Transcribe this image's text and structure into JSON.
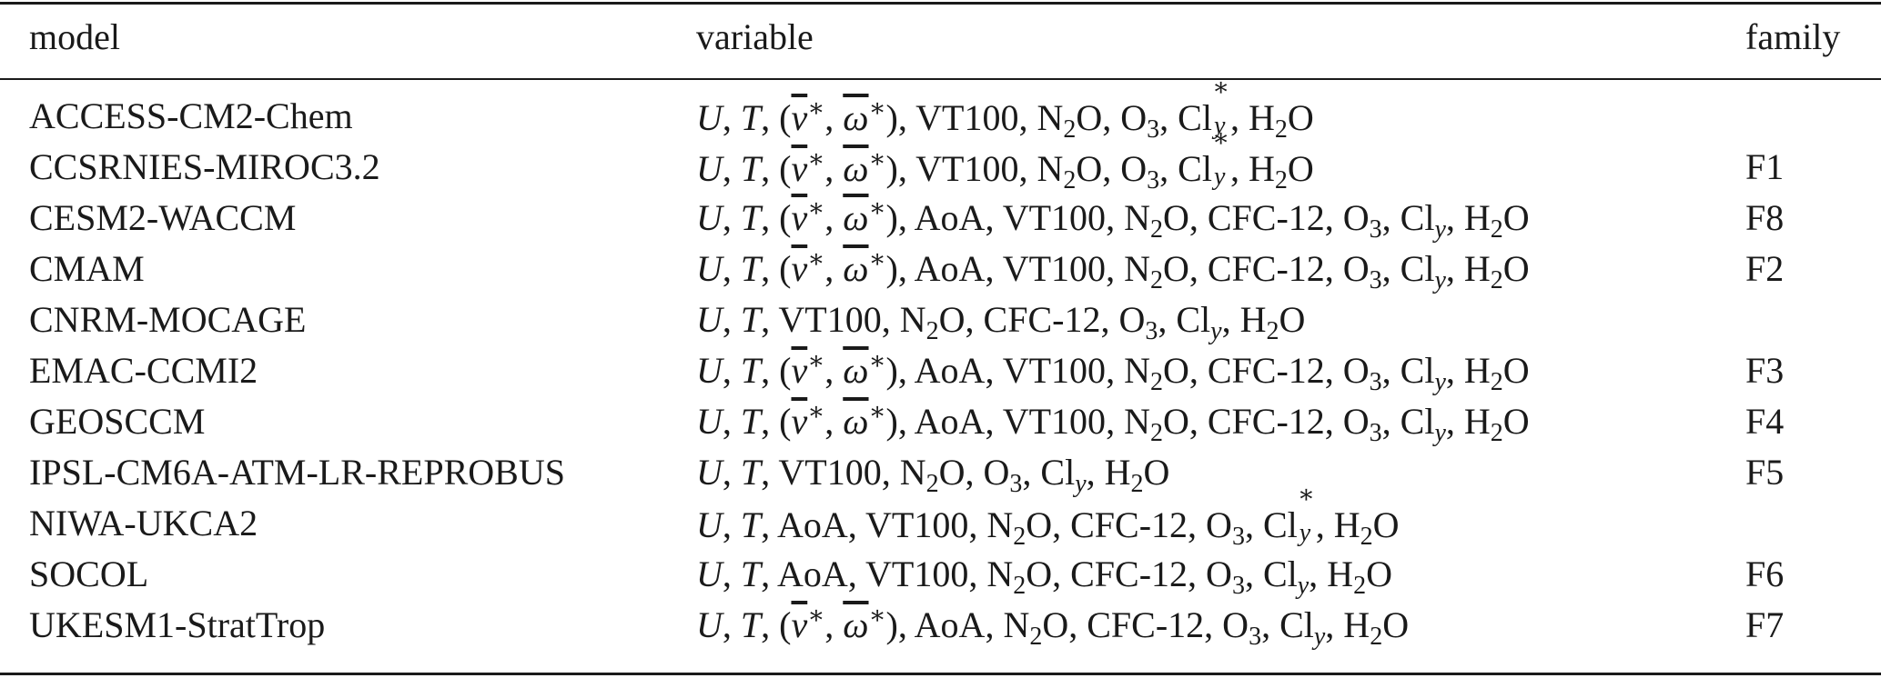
{
  "table": {
    "headers": {
      "model": "model",
      "variable": "variable",
      "family": "family"
    },
    "rows": [
      {
        "model": "ACCESS-CM2-Chem",
        "family": "",
        "vars": [
          "U",
          "T",
          "RC",
          "VT100",
          "N2O",
          "O3",
          "ClyStar",
          "H2O"
        ]
      },
      {
        "model": "CCSRNIES-MIROC3.2",
        "family": "F1",
        "vars": [
          "U",
          "T",
          "RC",
          "VT100",
          "N2O",
          "O3",
          "ClyStar",
          "H2O"
        ]
      },
      {
        "model": "CESM2-WACCM",
        "family": "F8",
        "vars": [
          "U",
          "T",
          "RC",
          "AoA",
          "VT100",
          "N2O",
          "CFC-12",
          "O3",
          "Cly",
          "H2O"
        ]
      },
      {
        "model": "CMAM",
        "family": "F2",
        "vars": [
          "U",
          "T",
          "RC",
          "AoA",
          "VT100",
          "N2O",
          "CFC-12",
          "O3",
          "Cly",
          "H2O"
        ]
      },
      {
        "model": "CNRM-MOCAGE",
        "family": "",
        "vars": [
          "U",
          "T",
          "VT100",
          "N2O",
          "CFC-12",
          "O3",
          "Cly",
          "H2O"
        ]
      },
      {
        "model": "EMAC-CCMI2",
        "family": "F3",
        "vars": [
          "U",
          "T",
          "RC",
          "AoA",
          "VT100",
          "N2O",
          "CFC-12",
          "O3",
          "Cly",
          "H2O"
        ]
      },
      {
        "model": "GEOSCCM",
        "family": "F4",
        "vars": [
          "U",
          "T",
          "RC",
          "AoA",
          "VT100",
          "N2O",
          "CFC-12",
          "O3",
          "Cly",
          "H2O"
        ]
      },
      {
        "model": "IPSL-CM6A-ATM-LR-REPROBUS",
        "family": "F5",
        "vars": [
          "U",
          "T",
          "VT100",
          "N2O",
          "O3",
          "Cly",
          "H2O"
        ]
      },
      {
        "model": "NIWA-UKCA2",
        "family": "",
        "vars": [
          "U",
          "T",
          "AoA",
          "VT100",
          "N2O",
          "CFC-12",
          "O3",
          "ClyStar",
          "H2O"
        ]
      },
      {
        "model": "SOCOL",
        "family": "F6",
        "vars": [
          "U",
          "T",
          "AoA",
          "VT100",
          "N2O",
          "CFC-12",
          "O3",
          "Cly",
          "H2O"
        ]
      },
      {
        "model": "UKESM1-StratTrop",
        "family": "F7",
        "vars": [
          "U",
          "T",
          "RC",
          "AoA",
          "N2O",
          "CFC-12",
          "O3",
          "Cly",
          "H2O"
        ]
      }
    ]
  }
}
